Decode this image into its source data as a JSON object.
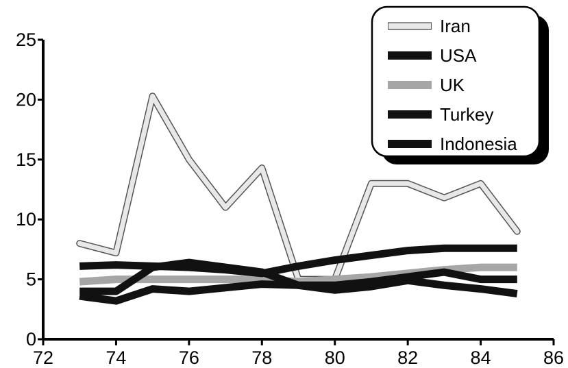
{
  "chart_data": {
    "type": "line",
    "title": "",
    "xlabel": "",
    "ylabel": "",
    "xlim": [
      72,
      86
    ],
    "ylim": [
      0,
      25
    ],
    "x_ticks": [
      "72",
      "74",
      "76",
      "78",
      "80",
      "82",
      "84",
      "86"
    ],
    "y_ticks": [
      "0",
      "5",
      "10",
      "15",
      "20",
      "25"
    ],
    "grid": false,
    "legend_position": "top-right",
    "x": [
      73,
      74,
      75,
      76,
      77,
      78,
      79,
      80,
      81,
      82,
      83,
      84,
      85
    ],
    "series": [
      {
        "name": "Iran",
        "color": "#e8e8e8",
        "values": [
          8.0,
          7.2,
          20.3,
          15.0,
          11.0,
          14.3,
          5.0,
          5.0,
          13.0,
          13.0,
          11.8,
          13.0,
          9.0
        ]
      },
      {
        "name": "USA",
        "color": "#111111",
        "values": [
          4.0,
          4.0,
          6.0,
          6.4,
          6.0,
          5.6,
          4.5,
          4.5,
          4.8,
          5.2,
          5.6,
          5.0,
          5.0
        ]
      },
      {
        "name": "UK",
        "color": "#a6a6a6",
        "values": [
          4.8,
          5.0,
          5.0,
          5.0,
          5.0,
          5.0,
          4.8,
          5.0,
          5.2,
          5.5,
          5.8,
          6.0,
          6.0
        ]
      },
      {
        "name": "Turkey",
        "color": "#111111",
        "values": [
          3.6,
          3.2,
          4.2,
          4.0,
          4.3,
          4.6,
          4.5,
          4.1,
          4.4,
          4.9,
          4.5,
          4.2,
          3.8
        ]
      },
      {
        "name": "Indonesia",
        "color": "#111111",
        "values": [
          6.1,
          6.2,
          6.1,
          6.0,
          5.8,
          5.5,
          6.1,
          6.6,
          7.0,
          7.4,
          7.6,
          7.6,
          7.6
        ]
      }
    ]
  }
}
